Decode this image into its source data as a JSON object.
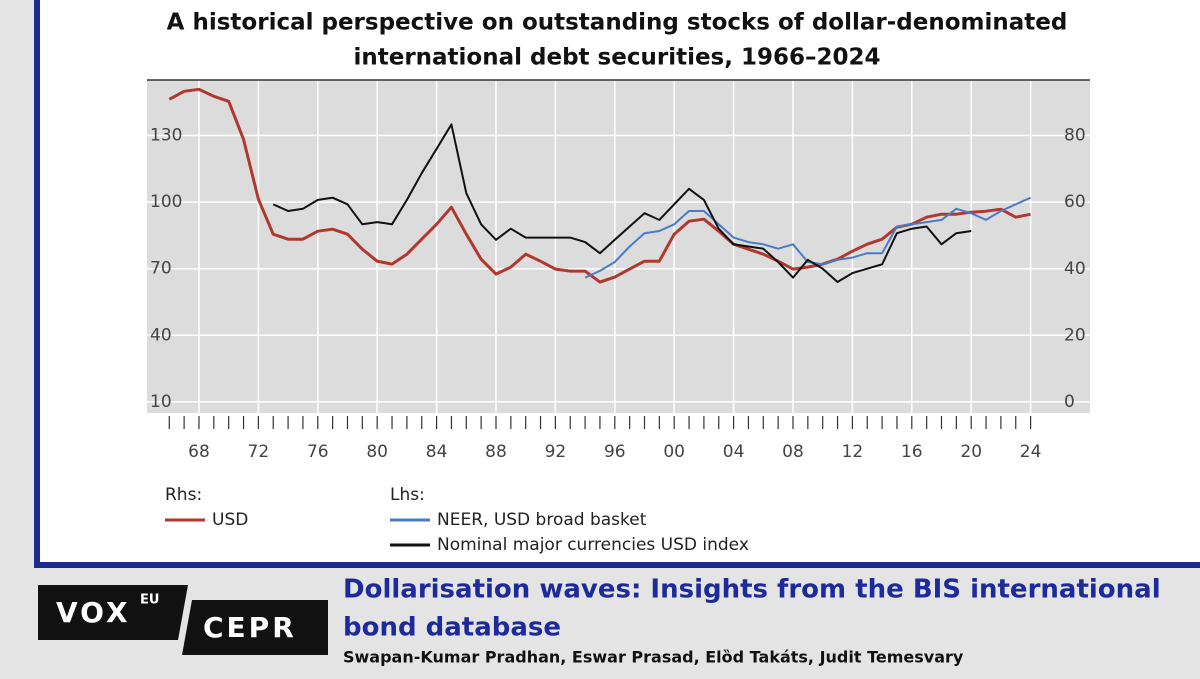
{
  "chart_data": {
    "type": "line",
    "title": [
      "A historical perspective on outstanding stocks of dollar-denominated",
      "international debt securities, 1966–2024"
    ],
    "x": [
      1966,
      1967,
      1968,
      1969,
      1970,
      1971,
      1972,
      1973,
      1974,
      1975,
      1976,
      1977,
      1978,
      1979,
      1980,
      1981,
      1982,
      1983,
      1984,
      1985,
      1986,
      1987,
      1988,
      1989,
      1990,
      1991,
      1992,
      1993,
      1994,
      1995,
      1996,
      1997,
      1998,
      1999,
      2000,
      2001,
      2002,
      2003,
      2004,
      2005,
      2006,
      2007,
      2008,
      2009,
      2010,
      2011,
      2012,
      2013,
      2014,
      2015,
      2016,
      2017,
      2018,
      2019,
      2020,
      2021,
      2022,
      2023,
      2024
    ],
    "xlim": [
      1964.5,
      2028
    ],
    "xticks": [
      {
        "value": 1968,
        "label": "68"
      },
      {
        "value": 1972,
        "label": "72"
      },
      {
        "value": 1976,
        "label": "76"
      },
      {
        "value": 1980,
        "label": "80"
      },
      {
        "value": 1984,
        "label": "84"
      },
      {
        "value": 1988,
        "label": "88"
      },
      {
        "value": 1992,
        "label": "92"
      },
      {
        "value": 1996,
        "label": "96"
      },
      {
        "value": 2000,
        "label": "00"
      },
      {
        "value": 2004,
        "label": "04"
      },
      {
        "value": 2008,
        "label": "08"
      },
      {
        "value": 2012,
        "label": "12"
      },
      {
        "value": 2016,
        "label": "16"
      },
      {
        "value": 2020,
        "label": "20"
      },
      {
        "value": 2024,
        "label": "24"
      }
    ],
    "ylim": [
      5,
      155
    ],
    "yticks": [
      10,
      40,
      70,
      100,
      130
    ],
    "y2lim": [
      -3.3,
      96.7
    ],
    "y2ticks": [
      0,
      20,
      40,
      60,
      80
    ],
    "grid": true,
    "legend_groups": [
      "Rhs:",
      "Lhs:"
    ],
    "series": [
      {
        "name": "USD",
        "color": "#b0382f",
        "axis": "y2",
        "group": 0,
        "values": [
          90.9,
          93.3,
          93.9,
          91.8,
          90.3,
          78.9,
          60.9,
          50.4,
          48.9,
          48.9,
          51.3,
          51.9,
          50.4,
          45.9,
          42.3,
          41.4,
          44.4,
          48.9,
          53.4,
          58.5,
          50.4,
          42.9,
          38.4,
          40.5,
          44.4,
          42.3,
          39.9,
          39.3,
          39.3,
          36,
          37.5,
          39.9,
          42.3,
          42.3,
          50.4,
          54.3,
          54.9,
          51.3,
          47.4,
          45.9,
          44.4,
          42.3,
          39.9,
          40.5,
          41.4,
          42.9,
          45.3,
          47.4,
          48.9,
          52.5,
          53.4,
          55.5,
          56.4,
          56.4,
          57,
          57.3,
          57.9,
          55.5,
          56.4
        ]
      },
      {
        "name": "NEER, USD broad basket",
        "color": "#4a7cc4",
        "group": 1,
        "values": [
          null,
          null,
          null,
          null,
          null,
          null,
          null,
          null,
          null,
          null,
          null,
          null,
          null,
          null,
          null,
          null,
          null,
          null,
          null,
          null,
          null,
          null,
          null,
          null,
          null,
          null,
          null,
          null,
          66,
          69,
          73,
          80,
          86,
          87,
          90,
          96,
          96,
          90,
          84,
          82,
          81,
          79,
          81,
          73,
          72,
          74,
          75,
          77,
          77,
          89,
          90,
          91,
          92,
          97,
          95,
          92,
          96,
          99,
          102
        ]
      },
      {
        "name": "Nominal major currencies USD index",
        "color": "#111111",
        "group": 1,
        "values": [
          null,
          null,
          null,
          null,
          null,
          null,
          null,
          99,
          96,
          97,
          101,
          102,
          99,
          90,
          91,
          90,
          101,
          113,
          124,
          135,
          104,
          90,
          83,
          88,
          84,
          84,
          84,
          84,
          82,
          77,
          83,
          89,
          95,
          92,
          99,
          106,
          101,
          88,
          81,
          80,
          79,
          73,
          66,
          74,
          70,
          64,
          68,
          70,
          72,
          86,
          88,
          89,
          81,
          86,
          87,
          null,
          null,
          null,
          null
        ]
      }
    ]
  },
  "footer": {
    "logo_left": "VOX",
    "logo_sup": "EU",
    "logo_right": "CEPR",
    "headline": [
      "Dollarisation waves: Insights from the BIS international",
      "bond database"
    ],
    "authors": "Swapan-Kumar Pradhan, Eswar Prasad, Elȍd Takáts, Judit Temesvary"
  }
}
